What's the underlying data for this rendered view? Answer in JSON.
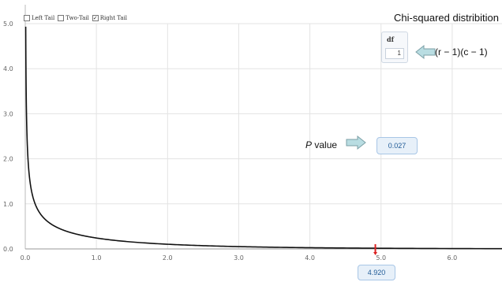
{
  "tail_options": [
    {
      "label": "Left Tail",
      "checked": false
    },
    {
      "label": "Two-Tail",
      "checked": false
    },
    {
      "label": "Right Tail",
      "checked": true
    }
  ],
  "title": "Chi-squared distribition",
  "df": {
    "label": "df",
    "value": "1"
  },
  "formula": "(r − 1)(c − 1)",
  "p_value": {
    "label_italic": "P",
    "label_rest": " value",
    "value": "0.027"
  },
  "x_value": "4.920",
  "colors": {
    "curve": "#111111",
    "marker": "#dd2222",
    "arrow_fill": "#b9dde2",
    "arrow_stroke": "#7b9fa6",
    "grid": "#e3e3e3"
  },
  "chart_data": {
    "type": "line",
    "title": "Chi-squared distribition",
    "xlabel": "",
    "ylabel": "",
    "xlim": [
      0,
      6.7
    ],
    "ylim": [
      0,
      5
    ],
    "x_ticks": [
      "0.0",
      "1.0",
      "2.0",
      "3.0",
      "4.0",
      "5.0",
      "6.0"
    ],
    "y_ticks": [
      "0.0",
      "1.0",
      "2.0",
      "3.0",
      "4.0",
      "5.0"
    ],
    "grid": true,
    "distribution": "chi-squared",
    "df": 1,
    "critical_x": 4.92,
    "p_value": 0.027,
    "tail": "right",
    "series": [
      {
        "x": [
          0.01,
          0.02,
          0.03,
          0.05,
          0.075,
          0.1,
          0.15,
          0.2,
          0.3,
          0.4,
          0.5,
          0.7,
          1.0,
          1.5,
          2.0,
          2.5,
          3.0,
          4.0,
          5.0,
          6.0,
          6.7
        ],
        "y": [
          3.97,
          2.8,
          2.27,
          1.74,
          1.41,
          1.2,
          0.96,
          0.81,
          0.63,
          0.52,
          0.44,
          0.35,
          0.24,
          0.15,
          0.1,
          0.07,
          0.05,
          0.03,
          0.015,
          0.008,
          0.005
        ]
      }
    ]
  }
}
